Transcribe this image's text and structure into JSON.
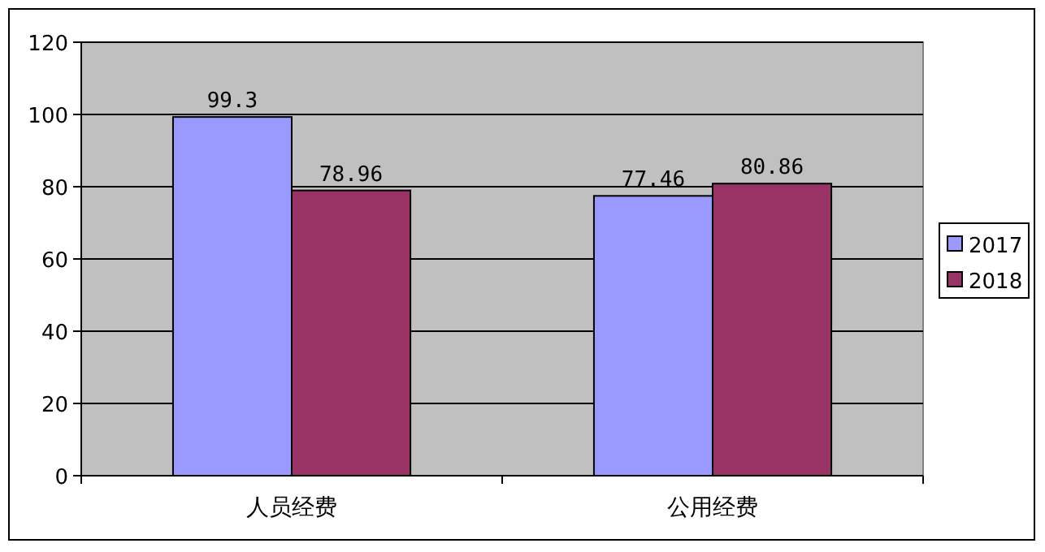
{
  "chart_data": {
    "type": "bar",
    "categories": [
      "人员经费",
      "公用经费"
    ],
    "series": [
      {
        "name": "2017",
        "color": "#9999ff",
        "values": [
          99.3,
          77.46
        ]
      },
      {
        "name": "2018",
        "color": "#993366",
        "values": [
          78.96,
          80.86
        ]
      }
    ],
    "ylim": [
      0,
      120
    ],
    "yticks": [
      0,
      20,
      40,
      60,
      80,
      100,
      120
    ],
    "grid": "y",
    "legend": "right",
    "data_labels": true
  }
}
